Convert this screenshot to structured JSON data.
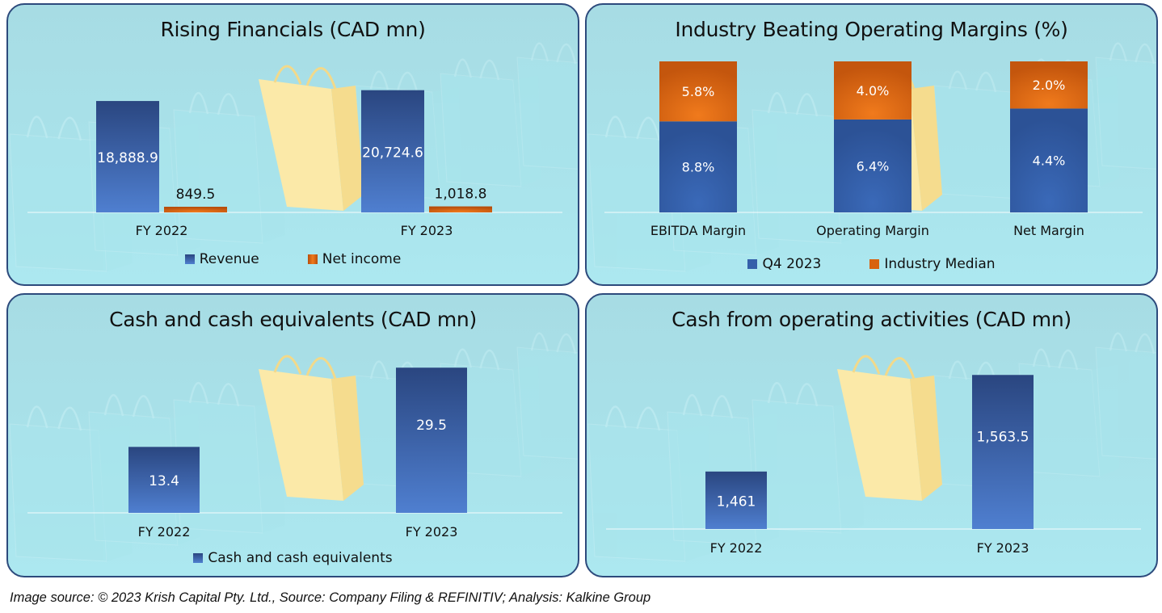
{
  "colors": {
    "blue_dark": "#2a4680",
    "blue_light": "#4f7fd0",
    "orange_dark": "#b84e0c",
    "orange_light": "#f07a1c",
    "panel_border": "#2d4a7c"
  },
  "footer": {
    "text": "Image source: © 2023 Krish Capital Pty. Ltd., Source: Company Filing & REFINITIV; Analysis: Kalkine Group"
  },
  "chart_data": [
    {
      "id": "rising-financials",
      "type": "bar",
      "title": "Rising Financials (CAD mn)",
      "categories": [
        "FY 2022",
        "FY 2023"
      ],
      "series": [
        {
          "name": "Revenue",
          "values": [
            18888.9,
            20724.6
          ],
          "labels": [
            "18,888.9",
            "20,724.6"
          ]
        },
        {
          "name": "Net income",
          "values": [
            849.5,
            1018.8
          ],
          "labels": [
            "849.5",
            "1,018.8"
          ]
        }
      ],
      "ylim": [
        0,
        21500
      ],
      "grid": false,
      "legend": "bottom",
      "xlabel": "",
      "ylabel": ""
    },
    {
      "id": "operating-margins",
      "type": "bar",
      "stacked": true,
      "title": "Industry Beating Operating Margins (%)",
      "categories": [
        "EBITDA Margin",
        "Operating Margin",
        "Net Margin"
      ],
      "series": [
        {
          "name": "Q4 2023",
          "values": [
            8.8,
            6.4,
            4.4
          ],
          "labels": [
            "8.8%",
            "6.4%",
            "4.4%"
          ]
        },
        {
          "name": "Industry Median",
          "values": [
            5.8,
            4.0,
            2.0
          ],
          "labels": [
            "5.8%",
            "4.0%",
            "2.0%"
          ]
        }
      ],
      "note": "Bars are drawn at equal total height (100% stacked-style display)",
      "grid": false,
      "legend": "bottom",
      "xlabel": "",
      "ylabel": ""
    },
    {
      "id": "cash-equivalents",
      "type": "bar",
      "title": "Cash and cash equivalents (CAD mn)",
      "categories": [
        "FY 2022",
        "FY 2023"
      ],
      "series": [
        {
          "name": "Cash and cash equivalents",
          "values": [
            13.4,
            29.5
          ],
          "labels": [
            "13.4",
            "29.5"
          ]
        }
      ],
      "ylim": [
        0,
        32
      ],
      "grid": false,
      "legend": "bottom",
      "xlabel": "",
      "ylabel": ""
    },
    {
      "id": "cash-operating",
      "type": "bar",
      "title": "Cash from operating activities (CAD mn)",
      "categories": [
        "FY 2022",
        "FY 2023"
      ],
      "series": [
        {
          "name": "Cash from operating activities",
          "values": [
            1461,
            1563.5
          ],
          "labels": [
            "1,461",
            "1,563.5"
          ]
        }
      ],
      "ylim": [
        1400,
        1580
      ],
      "grid": false,
      "legend": "none",
      "xlabel": "",
      "ylabel": ""
    }
  ]
}
